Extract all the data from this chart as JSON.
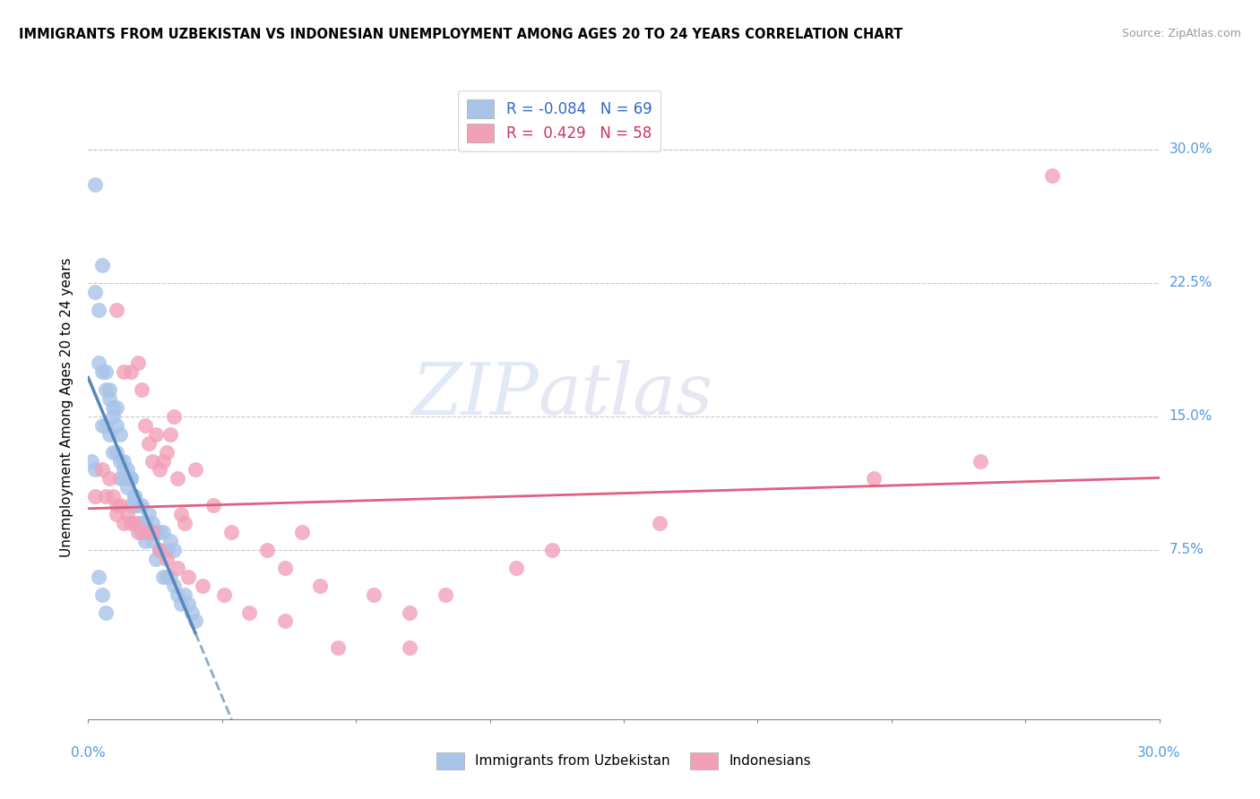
{
  "title": "IMMIGRANTS FROM UZBEKISTAN VS INDONESIAN UNEMPLOYMENT AMONG AGES 20 TO 24 YEARS CORRELATION CHART",
  "source": "Source: ZipAtlas.com",
  "ylabel": "Unemployment Among Ages 20 to 24 years",
  "ytick_labels": [
    "7.5%",
    "15.0%",
    "22.5%",
    "30.0%"
  ],
  "ytick_values": [
    0.075,
    0.15,
    0.225,
    0.3
  ],
  "xlim": [
    0.0,
    0.3
  ],
  "ylim": [
    -0.02,
    0.33
  ],
  "color_blue": "#A8C4E8",
  "color_pink": "#F2A0B8",
  "line_blue": "#5588BB",
  "line_pink": "#E06080",
  "watermark_zip": "ZIP",
  "watermark_atlas": "atlas",
  "legend_label1": "Immigrants from Uzbekistan",
  "legend_label2": "Indonesians",
  "legend_text1": "R = -0.084   N = 69",
  "legend_text2": "R =  0.429   N = 58",
  "blue_x": [
    0.002,
    0.004,
    0.002,
    0.003,
    0.004,
    0.005,
    0.005,
    0.006,
    0.006,
    0.007,
    0.007,
    0.008,
    0.008,
    0.009,
    0.009,
    0.01,
    0.01,
    0.011,
    0.011,
    0.012,
    0.012,
    0.013,
    0.013,
    0.014,
    0.015,
    0.015,
    0.016,
    0.016,
    0.017,
    0.018,
    0.019,
    0.02,
    0.021,
    0.022,
    0.023,
    0.024,
    0.003,
    0.004,
    0.005,
    0.006,
    0.007,
    0.008,
    0.009,
    0.01,
    0.011,
    0.012,
    0.013,
    0.014,
    0.015,
    0.016,
    0.017,
    0.018,
    0.019,
    0.02,
    0.021,
    0.022,
    0.023,
    0.024,
    0.025,
    0.026,
    0.027,
    0.028,
    0.029,
    0.03,
    0.001,
    0.002,
    0.003,
    0.004,
    0.005
  ],
  "blue_y": [
    0.28,
    0.235,
    0.22,
    0.21,
    0.175,
    0.175,
    0.165,
    0.165,
    0.16,
    0.155,
    0.15,
    0.155,
    0.13,
    0.14,
    0.125,
    0.12,
    0.115,
    0.12,
    0.11,
    0.115,
    0.1,
    0.105,
    0.1,
    0.09,
    0.1,
    0.085,
    0.09,
    0.085,
    0.095,
    0.09,
    0.085,
    0.085,
    0.085,
    0.075,
    0.08,
    0.075,
    0.18,
    0.145,
    0.145,
    0.14,
    0.13,
    0.145,
    0.115,
    0.125,
    0.115,
    0.115,
    0.105,
    0.1,
    0.09,
    0.08,
    0.085,
    0.08,
    0.07,
    0.075,
    0.06,
    0.06,
    0.06,
    0.055,
    0.05,
    0.045,
    0.05,
    0.045,
    0.04,
    0.035,
    0.125,
    0.12,
    0.06,
    0.05,
    0.04
  ],
  "pink_x": [
    0.002,
    0.004,
    0.005,
    0.006,
    0.007,
    0.008,
    0.008,
    0.009,
    0.01,
    0.011,
    0.012,
    0.013,
    0.014,
    0.015,
    0.016,
    0.017,
    0.018,
    0.019,
    0.02,
    0.021,
    0.022,
    0.023,
    0.024,
    0.025,
    0.026,
    0.027,
    0.03,
    0.035,
    0.04,
    0.05,
    0.055,
    0.06,
    0.065,
    0.08,
    0.09,
    0.1,
    0.12,
    0.13,
    0.16,
    0.22,
    0.25,
    0.27,
    0.008,
    0.01,
    0.012,
    0.014,
    0.016,
    0.018,
    0.02,
    0.022,
    0.025,
    0.028,
    0.032,
    0.038,
    0.045,
    0.055,
    0.07,
    0.09
  ],
  "pink_y": [
    0.105,
    0.12,
    0.105,
    0.115,
    0.105,
    0.095,
    0.1,
    0.1,
    0.09,
    0.095,
    0.09,
    0.09,
    0.085,
    0.165,
    0.145,
    0.135,
    0.125,
    0.14,
    0.12,
    0.125,
    0.13,
    0.14,
    0.15,
    0.115,
    0.095,
    0.09,
    0.12,
    0.1,
    0.085,
    0.075,
    0.065,
    0.085,
    0.055,
    0.05,
    0.04,
    0.05,
    0.065,
    0.075,
    0.09,
    0.115,
    0.125,
    0.285,
    0.21,
    0.175,
    0.175,
    0.18,
    0.085,
    0.085,
    0.075,
    0.07,
    0.065,
    0.06,
    0.055,
    0.05,
    0.04,
    0.035,
    0.02,
    0.02
  ]
}
